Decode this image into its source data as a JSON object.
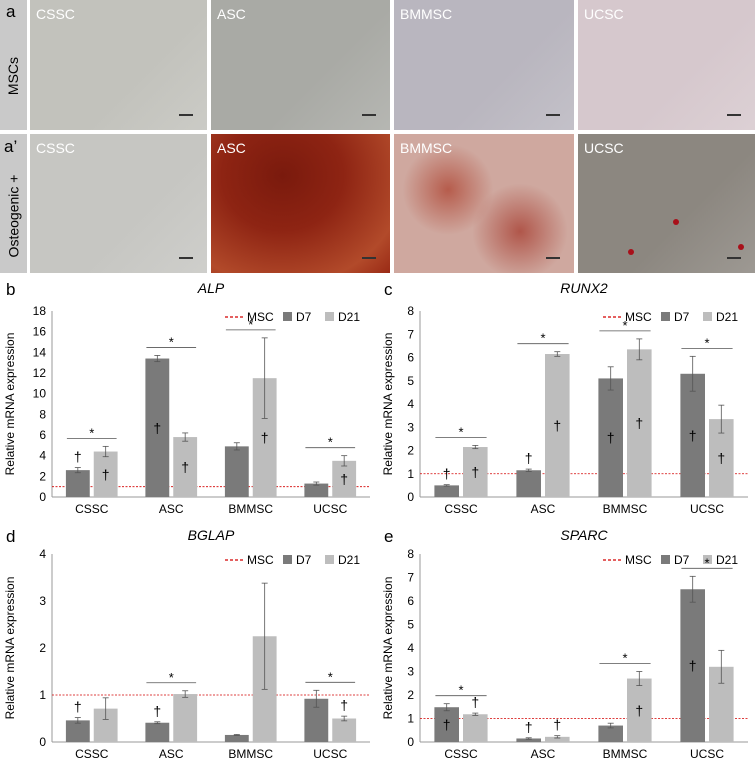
{
  "panels": {
    "a": "a",
    "a_prime": "a’",
    "b": "b",
    "c": "c",
    "d": "d",
    "e": "e"
  },
  "rows": {
    "msc": "MSCs",
    "osteo": "Osteogenic +"
  },
  "photos": {
    "msc": [
      {
        "label": "CSSC",
        "tint": "#c2c2bc"
      },
      {
        "label": "ASC",
        "tint": "#a9aaa5"
      },
      {
        "label": "BMMSC",
        "tint": "#b9b6bf"
      },
      {
        "label": "UCSC",
        "tint": "#d6c8cd"
      }
    ],
    "osteo": [
      {
        "label": "CSSC",
        "tint": "#c6c6c2"
      },
      {
        "label": "ASC",
        "tint": "#8a1e10"
      },
      {
        "label": "BMMSC",
        "tint": "#c9a39b"
      },
      {
        "label": "UCSC",
        "tint": "#8c8780"
      }
    ]
  },
  "colors": {
    "d7": "#7a7a7a",
    "d21": "#bdbdbd",
    "msc_line": "#d40000"
  },
  "chart_data": [
    {
      "id": "b",
      "type": "bar",
      "title": "ALP",
      "ylabel": "Relative mRNA expression",
      "categories": [
        "CSSC",
        "ASC",
        "BMMSC",
        "UCSC"
      ],
      "ylim": [
        0,
        18
      ],
      "yticks": [
        0,
        2,
        4,
        6,
        8,
        10,
        12,
        14,
        16,
        18
      ],
      "msc_line": 1,
      "legend": [
        "MSC",
        "D7",
        "D21"
      ],
      "series": [
        {
          "name": "D7",
          "values": [
            2.6,
            13.4,
            4.9,
            1.3
          ],
          "errors": [
            0.25,
            0.3,
            0.35,
            0.15
          ],
          "dagger": [
            true,
            true,
            false,
            false
          ]
        },
        {
          "name": "D21",
          "values": [
            4.4,
            5.8,
            11.5,
            3.5
          ],
          "errors": [
            0.5,
            0.4,
            3.9,
            0.5
          ],
          "dagger": [
            true,
            true,
            true,
            true
          ]
        }
      ],
      "significance": [
        true,
        true,
        true,
        true
      ]
    },
    {
      "id": "c",
      "type": "bar",
      "title": "RUNX2",
      "ylabel": "Relative mRNA expression",
      "categories": [
        "CSSC",
        "ASC",
        "BMMSC",
        "UCSC"
      ],
      "ylim": [
        0,
        8
      ],
      "yticks": [
        0,
        1,
        2,
        3,
        4,
        5,
        6,
        7,
        8
      ],
      "msc_line": 1,
      "legend": [
        "MSC",
        "D7",
        "D21"
      ],
      "series": [
        {
          "name": "D7",
          "values": [
            0.5,
            1.15,
            5.1,
            5.3
          ],
          "errors": [
            0.03,
            0.05,
            0.5,
            0.75
          ],
          "dagger": [
            true,
            true,
            true,
            true
          ]
        },
        {
          "name": "D21",
          "values": [
            2.15,
            6.15,
            6.35,
            3.35
          ],
          "errors": [
            0.07,
            0.1,
            0.45,
            0.6
          ],
          "dagger": [
            true,
            true,
            true,
            true
          ]
        }
      ],
      "significance": [
        true,
        true,
        true,
        true
      ]
    },
    {
      "id": "d",
      "type": "bar",
      "title": "BGLAP",
      "ylabel": "Relative mRNA expression",
      "categories": [
        "CSSC",
        "ASC",
        "BMMSC",
        "UCSC"
      ],
      "ylim": [
        0,
        4
      ],
      "yticks": [
        0,
        1,
        2,
        3,
        4
      ],
      "msc_line": 1,
      "legend": [
        "MSC",
        "D7",
        "D21"
      ],
      "series": [
        {
          "name": "D7",
          "values": [
            0.46,
            0.41,
            0.15,
            0.92
          ],
          "errors": [
            0.06,
            0.02,
            0.01,
            0.18
          ],
          "dagger": [
            true,
            true,
            false,
            false
          ]
        },
        {
          "name": "D21",
          "values": [
            0.71,
            1.02,
            2.25,
            0.5
          ],
          "errors": [
            0.23,
            0.07,
            1.13,
            0.05
          ],
          "dagger": [
            false,
            false,
            false,
            true
          ]
        }
      ],
      "significance": [
        false,
        true,
        false,
        true
      ]
    },
    {
      "id": "e",
      "type": "bar",
      "title": "SPARC",
      "ylabel": "Relative mRNA expression",
      "categories": [
        "CSSC",
        "ASC",
        "BMMSC",
        "UCSC"
      ],
      "ylim": [
        0,
        8
      ],
      "yticks": [
        0,
        1,
        2,
        3,
        4,
        5,
        6,
        7,
        8
      ],
      "msc_line": 1,
      "legend": [
        "MSC",
        "D7",
        "D21"
      ],
      "series": [
        {
          "name": "D7",
          "values": [
            1.48,
            0.15,
            0.7,
            6.5
          ],
          "errors": [
            0.15,
            0.03,
            0.1,
            0.55
          ],
          "dagger": [
            true,
            true,
            false,
            true
          ]
        },
        {
          "name": "D21",
          "values": [
            1.18,
            0.22,
            2.7,
            3.2
          ],
          "errors": [
            0.05,
            0.05,
            0.3,
            0.7
          ],
          "dagger": [
            true,
            true,
            true,
            false
          ]
        }
      ],
      "significance": [
        true,
        false,
        true,
        true
      ]
    }
  ]
}
